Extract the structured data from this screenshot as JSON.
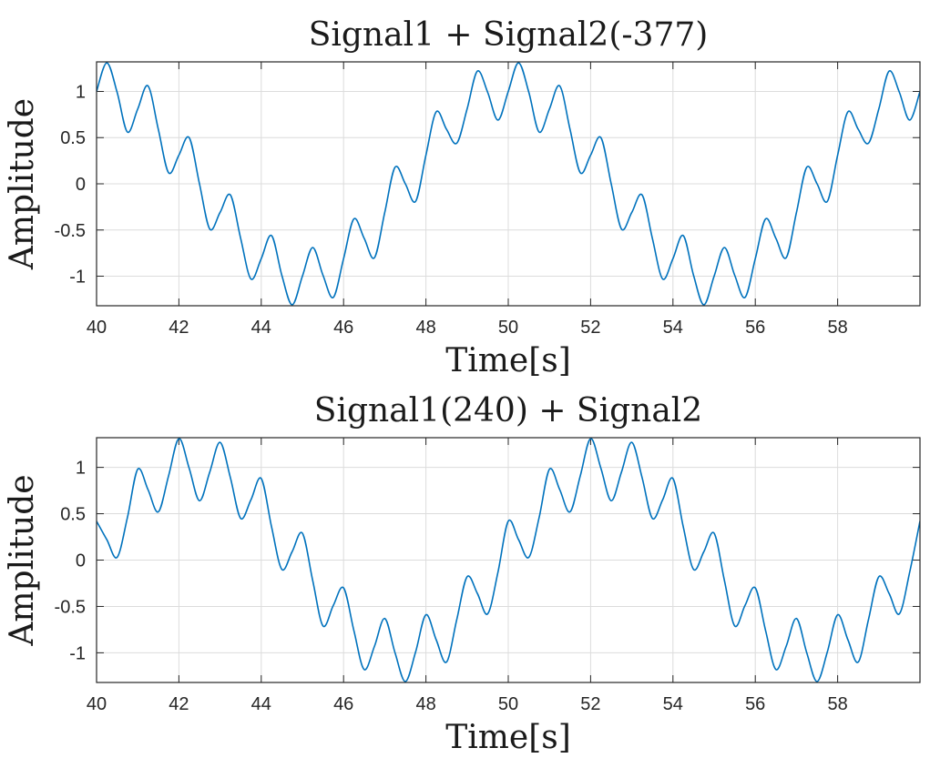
{
  "chart_data": [
    {
      "type": "line",
      "title": "Signal1 + Signal2(-377)",
      "xlabel": "Time[s]",
      "ylabel": "Amplitude",
      "xlim": [
        40,
        60
      ],
      "ylim": [
        -1.32,
        1.32
      ],
      "xticks": [
        "40",
        "42",
        "44",
        "46",
        "48",
        "50",
        "52",
        "54",
        "56",
        "58"
      ],
      "yticks": [
        "1",
        "0.5",
        "0",
        "-0.5",
        "-1"
      ],
      "grid": true,
      "series": [
        {
          "color": "#0072bd",
          "x": [
            40.0,
            40.25,
            40.5,
            40.75,
            41.0,
            41.25,
            41.5,
            41.75,
            42.0,
            42.25,
            42.5,
            42.75,
            43.0,
            43.25,
            43.5,
            43.75,
            44.0,
            44.25,
            44.5,
            44.75,
            45.0,
            45.25,
            45.5,
            45.75,
            46.0,
            46.25,
            46.5,
            46.75,
            47.0,
            47.25,
            47.5,
            47.75,
            48.0,
            48.25,
            48.5,
            48.75,
            49.0,
            49.25,
            49.5,
            49.75,
            50.0,
            50.25,
            50.5,
            50.75,
            51.0,
            51.25,
            51.5,
            51.75,
            52.0,
            52.25,
            52.5,
            52.75,
            53.0,
            53.25,
            53.5,
            53.75,
            54.0,
            54.25,
            54.5,
            54.75,
            55.0,
            55.25,
            55.5,
            55.75,
            56.0,
            56.25,
            56.5,
            56.75,
            57.0,
            57.25,
            57.5,
            57.75,
            58.0,
            58.25,
            58.5,
            58.75,
            59.0,
            59.25,
            59.5,
            59.75,
            60.0
          ],
          "y": [
            1.0,
            1.31,
            0.99,
            0.56,
            0.81,
            1.06,
            0.59,
            0.12,
            0.31,
            0.5,
            -0.0,
            -0.49,
            -0.31,
            -0.12,
            -0.59,
            -1.03,
            -0.81,
            -0.56,
            -0.99,
            -1.31,
            -1.0,
            -0.69,
            -0.99,
            -1.23,
            -0.81,
            -0.38,
            -0.59,
            -0.8,
            -0.31,
            0.18,
            -0.0,
            -0.19,
            0.31,
            0.78,
            0.59,
            0.44,
            0.81,
            1.22,
            0.99,
            0.69,
            1.0,
            1.31,
            0.99,
            0.56,
            0.81,
            1.06,
            0.59,
            0.12,
            0.31,
            0.5,
            -0.0,
            -0.49,
            -0.31,
            -0.12,
            -0.59,
            -1.03,
            -0.81,
            -0.56,
            -0.99,
            -1.31,
            -1.0,
            -0.69,
            -0.99,
            -1.23,
            -0.81,
            -0.38,
            -0.59,
            -0.8,
            -0.31,
            0.18,
            -0.0,
            -0.19,
            0.31,
            0.78,
            0.59,
            0.44,
            0.81,
            1.22,
            0.99,
            0.69,
            1.0
          ]
        }
      ]
    },
    {
      "type": "line",
      "title": "Signal1(240) + Signal2",
      "xlabel": "Time[s]",
      "ylabel": "Amplitude",
      "xlim": [
        40,
        60
      ],
      "ylim": [
        -1.32,
        1.32
      ],
      "xticks": [
        "40",
        "42",
        "44",
        "46",
        "48",
        "50",
        "52",
        "54",
        "56",
        "58"
      ],
      "yticks": [
        "1",
        "0.5",
        "0",
        "-0.5",
        "-1"
      ],
      "grid": true,
      "series": [
        {
          "color": "#0072bd",
          "x": [
            40.0,
            40.25,
            40.5,
            40.75,
            41.0,
            41.25,
            41.5,
            41.75,
            42.0,
            42.25,
            42.5,
            42.75,
            43.0,
            43.25,
            43.5,
            43.75,
            44.0,
            44.25,
            44.5,
            44.75,
            45.0,
            45.25,
            45.5,
            45.75,
            46.0,
            46.25,
            46.5,
            46.75,
            47.0,
            47.25,
            47.5,
            47.75,
            48.0,
            48.25,
            48.5,
            48.75,
            49.0,
            49.25,
            49.5,
            49.75,
            50.0,
            50.25,
            50.5,
            50.75,
            51.0,
            51.25,
            51.5,
            51.75,
            52.0,
            52.25,
            52.5,
            52.75,
            53.0,
            53.25,
            53.5,
            53.75,
            54.0,
            54.25,
            54.5,
            54.75,
            55.0,
            55.25,
            55.5,
            55.75,
            56.0,
            56.25,
            56.5,
            56.75,
            57.0,
            57.25,
            57.5,
            57.75,
            58.0,
            58.25,
            58.5,
            58.75,
            59.0,
            59.25,
            59.5,
            59.75,
            60.0
          ],
          "y": [
            0.42,
            0.22,
            0.03,
            0.46,
            0.98,
            0.76,
            0.52,
            0.91,
            1.31,
            0.99,
            0.64,
            0.95,
            1.27,
            0.89,
            0.45,
            0.65,
            0.88,
            0.36,
            -0.1,
            0.09,
            0.29,
            -0.22,
            -0.71,
            -0.49,
            -0.3,
            -0.76,
            -1.18,
            -0.93,
            -0.63,
            -1.0,
            -1.31,
            -0.99,
            -0.59,
            -0.86,
            -1.1,
            -0.64,
            -0.18,
            -0.36,
            -0.58,
            -0.13,
            0.42,
            0.22,
            0.03,
            0.46,
            0.98,
            0.76,
            0.52,
            0.91,
            1.31,
            0.99,
            0.64,
            0.95,
            1.27,
            0.89,
            0.45,
            0.65,
            0.88,
            0.36,
            -0.1,
            0.09,
            0.29,
            -0.22,
            -0.71,
            -0.49,
            -0.3,
            -0.76,
            -1.18,
            -0.93,
            -0.63,
            -1.0,
            -1.31,
            -0.99,
            -0.59,
            -0.86,
            -1.1,
            -0.64,
            -0.18,
            -0.36,
            -0.58,
            -0.13,
            0.42
          ]
        }
      ]
    }
  ]
}
